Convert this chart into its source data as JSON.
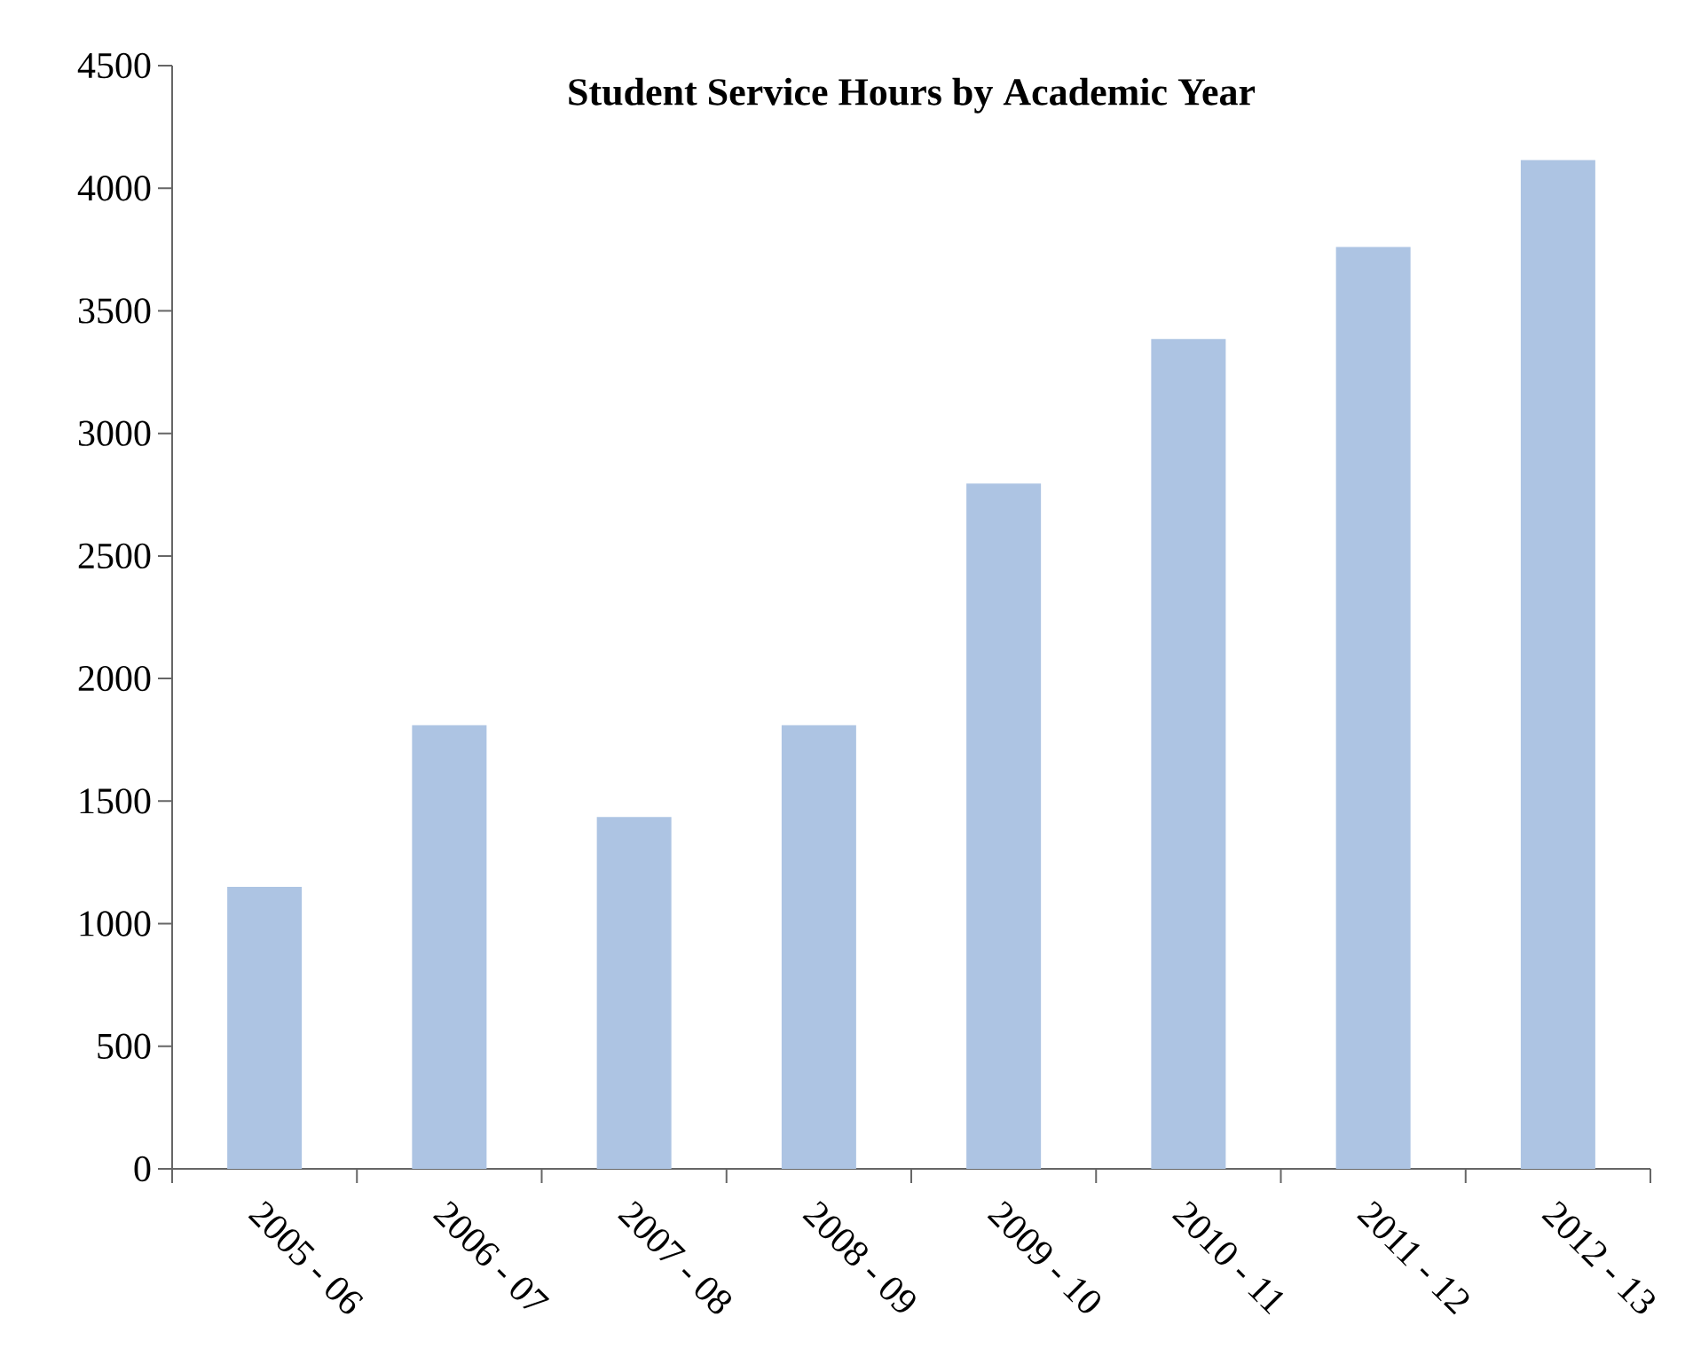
{
  "chart_data": {
    "type": "bar",
    "title": "Student Service Hours by Academic Year",
    "categories": [
      "2005 - 06",
      "2006 - 07",
      "2007 - 08",
      "2008 - 09",
      "2009 - 10",
      "2010 - 11",
      "2011 - 12",
      "2012 - 13"
    ],
    "values": [
      1150,
      1810,
      1435,
      1810,
      2795,
      3385,
      3760,
      4115
    ],
    "color": "#adc4e3",
    "ylim": [
      0,
      4500
    ],
    "yticks": [
      0,
      500,
      1000,
      1500,
      2000,
      2500,
      3000,
      3500,
      4000,
      4500
    ],
    "grid": false
  }
}
